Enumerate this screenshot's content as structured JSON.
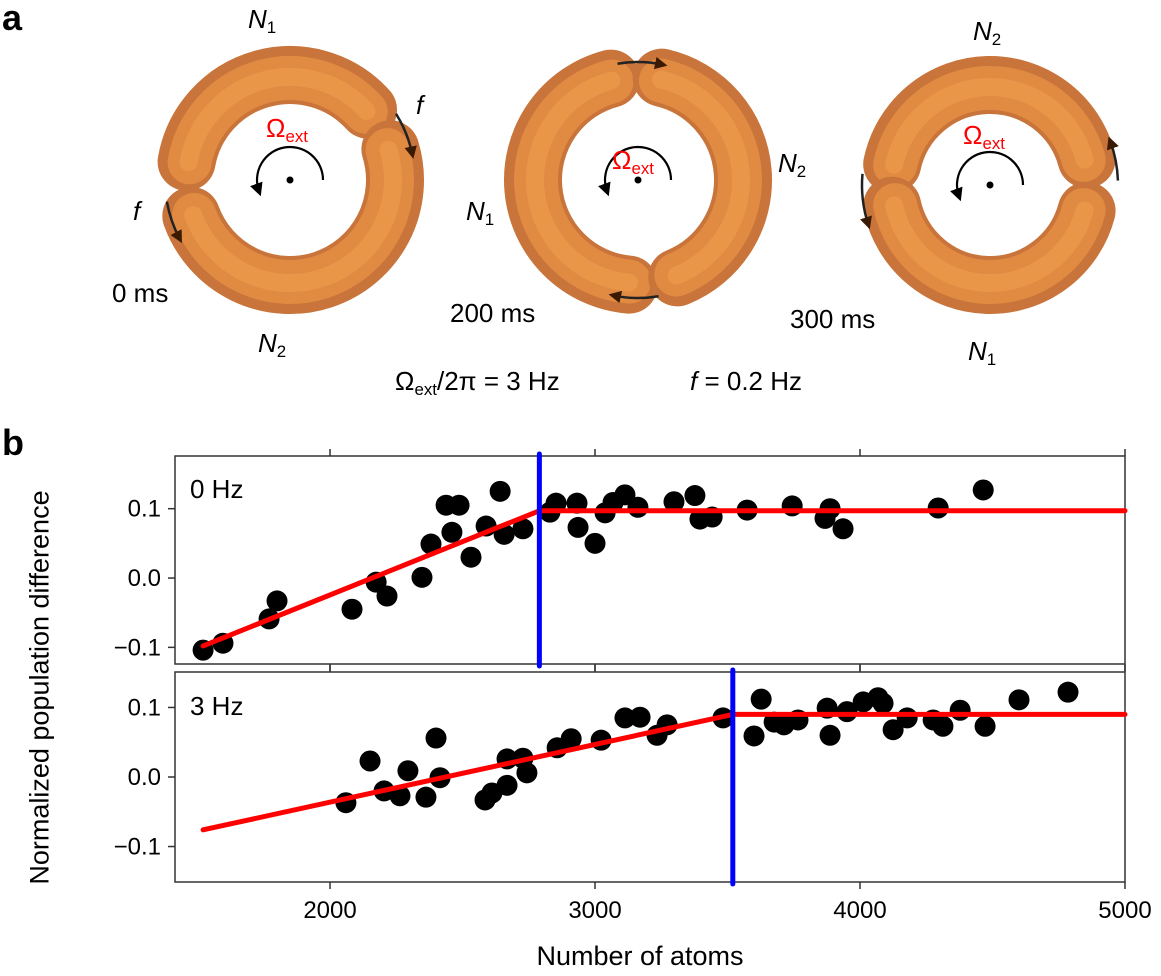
{
  "panel_a": {
    "letter": "a",
    "rings": [
      {
        "time": "0 ms",
        "top_label": {
          "symbol": "N",
          "sub": "1"
        },
        "bottom_label": {
          "symbol": "N",
          "sub": "2"
        },
        "f_labels": [
          "f",
          "f"
        ]
      },
      {
        "time": "200 ms",
        "left_label": {
          "symbol": "N",
          "sub": "1"
        },
        "right_label": {
          "symbol": "N",
          "sub": "2"
        }
      },
      {
        "time": "300 ms",
        "top_label": {
          "symbol": "N",
          "sub": "2"
        },
        "bottom_label": {
          "symbol": "N",
          "sub": "1"
        }
      }
    ],
    "omega_label": {
      "symbol": "Ω",
      "sub": "ext"
    },
    "caption_rotation": {
      "symbol": "Ω",
      "sub": "ext",
      "rest": "/2π = 3 Hz"
    },
    "caption_tunneling": {
      "symbol": "f",
      "rest": " = 0.2 Hz"
    },
    "colors": {
      "ring": "#e08a42",
      "omega": "#ff0000",
      "arrow": "#000000"
    }
  },
  "panel_b": {
    "letter": "b"
  },
  "chart_data": [
    {
      "type": "scatter",
      "label": "0 Hz",
      "xlabel": "Number of atoms",
      "ylabel": "Normalized population difference",
      "xlim": [
        1415,
        5000
      ],
      "ylim": [
        -0.124,
        0.176
      ],
      "yticks": [
        "0.1",
        "0.0",
        "−0.1"
      ],
      "ytick_values": [
        0.1,
        0.0,
        -0.1
      ],
      "points": [
        [
          1521,
          -0.104
        ],
        [
          1596,
          -0.094
        ],
        [
          1770,
          -0.059
        ],
        [
          1800,
          -0.033
        ],
        [
          2083,
          -0.045
        ],
        [
          2174,
          -0.006
        ],
        [
          2215,
          -0.026
        ],
        [
          2347,
          0.001
        ],
        [
          2381,
          0.049
        ],
        [
          2438,
          0.105
        ],
        [
          2487,
          0.105
        ],
        [
          2460,
          0.066
        ],
        [
          2532,
          0.03
        ],
        [
          2589,
          0.075
        ],
        [
          2642,
          0.125
        ],
        [
          2657,
          0.063
        ],
        [
          2728,
          0.071
        ],
        [
          2853,
          0.108
        ],
        [
          2830,
          0.095
        ],
        [
          2932,
          0.108
        ],
        [
          2936,
          0.073
        ],
        [
          3000,
          0.05
        ],
        [
          3038,
          0.094
        ],
        [
          3068,
          0.109
        ],
        [
          3113,
          0.12
        ],
        [
          3162,
          0.102
        ],
        [
          3298,
          0.11
        ],
        [
          3377,
          0.119
        ],
        [
          3396,
          0.085
        ],
        [
          3442,
          0.088
        ],
        [
          3574,
          0.098
        ],
        [
          3744,
          0.104
        ],
        [
          3887,
          0.1
        ],
        [
          3868,
          0.086
        ],
        [
          3936,
          0.071
        ],
        [
          4295,
          0.101
        ],
        [
          4465,
          0.127
        ]
      ],
      "fit": [
        [
          1521,
          -0.098
        ],
        [
          2790,
          0.097
        ],
        [
          5000,
          0.097
        ]
      ],
      "threshold_x": 2790,
      "colors": {
        "points": "#000000",
        "fit": "#ff0000",
        "threshold": "#0000ff"
      }
    },
    {
      "type": "scatter",
      "label": "3 Hz",
      "xlabel": "Number of atoms",
      "ylabel": "Normalized population difference",
      "xlim": [
        1415,
        5000
      ],
      "ylim": [
        -0.151,
        0.151
      ],
      "xticks": [
        "2000",
        "3000",
        "4000",
        "5000"
      ],
      "xtick_values": [
        2000,
        3000,
        4000,
        5000
      ],
      "yticks": [
        "0.1",
        "0.0",
        "−0.1"
      ],
      "ytick_values": [
        0.1,
        0.0,
        -0.1
      ],
      "points": [
        [
          2060,
          -0.037
        ],
        [
          2151,
          0.023
        ],
        [
          2204,
          -0.02
        ],
        [
          2294,
          0.009
        ],
        [
          2264,
          -0.027
        ],
        [
          2362,
          -0.029
        ],
        [
          2400,
          0.056
        ],
        [
          2415,
          -0.001
        ],
        [
          2585,
          -0.033
        ],
        [
          2611,
          -0.023
        ],
        [
          2668,
          -0.012
        ],
        [
          2668,
          0.026
        ],
        [
          2728,
          0.027
        ],
        [
          2743,
          0.006
        ],
        [
          2857,
          0.042
        ],
        [
          2910,
          0.055
        ],
        [
          3023,
          0.053
        ],
        [
          3113,
          0.085
        ],
        [
          3170,
          0.086
        ],
        [
          3234,
          0.06
        ],
        [
          3272,
          0.075
        ],
        [
          3483,
          0.085
        ],
        [
          3600,
          0.059
        ],
        [
          3627,
          0.112
        ],
        [
          3676,
          0.079
        ],
        [
          3713,
          0.075
        ],
        [
          3766,
          0.082
        ],
        [
          3876,
          0.099
        ],
        [
          3887,
          0.06
        ],
        [
          3951,
          0.094
        ],
        [
          4012,
          0.108
        ],
        [
          4068,
          0.114
        ],
        [
          4087,
          0.106
        ],
        [
          4125,
          0.068
        ],
        [
          4178,
          0.085
        ],
        [
          4276,
          0.082
        ],
        [
          4313,
          0.073
        ],
        [
          4378,
          0.096
        ],
        [
          4472,
          0.073
        ],
        [
          4600,
          0.111
        ],
        [
          4785,
          0.122
        ]
      ],
      "fit": [
        [
          1521,
          -0.076
        ],
        [
          3520,
          0.09
        ],
        [
          5000,
          0.09
        ]
      ],
      "threshold_x": 3520,
      "colors": {
        "points": "#000000",
        "fit": "#ff0000",
        "threshold": "#0000ff"
      }
    }
  ]
}
